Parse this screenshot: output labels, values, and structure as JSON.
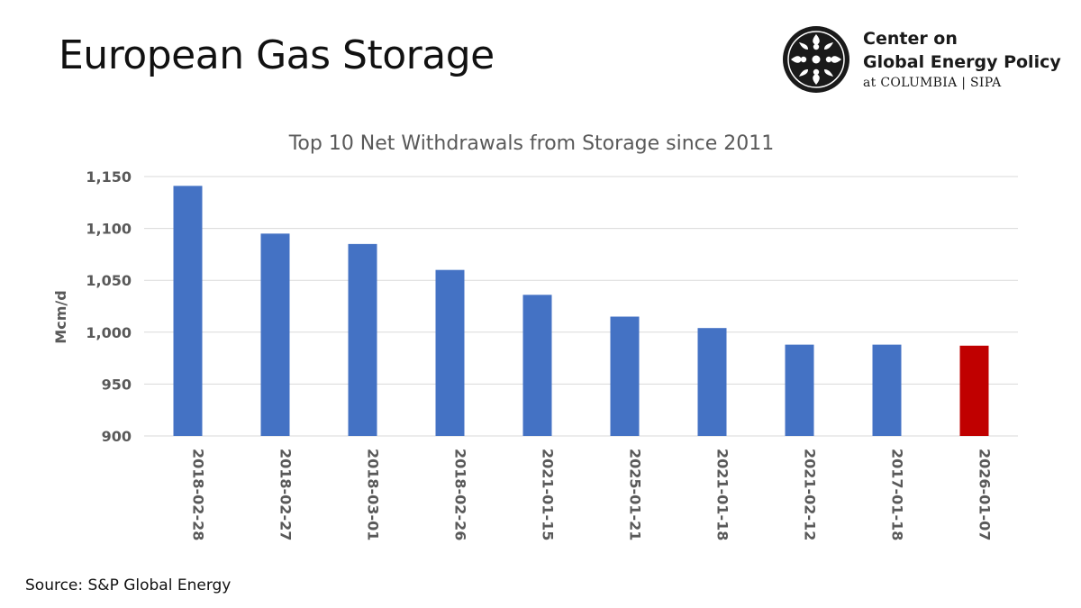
{
  "slide": {
    "title": "European Gas Storage",
    "source": "Source: S&P Global Energy"
  },
  "logo": {
    "line1": "Center on",
    "line2": "Global Energy Policy",
    "line3": "at COLUMBIA | SIPA",
    "icon": "columbia-crown-emblem-icon"
  },
  "colors": {
    "bar_default": "#4472C4",
    "bar_highlight": "#C00000",
    "grid": "#D9D9D9",
    "text": "#595959"
  },
  "chart_data": {
    "type": "bar",
    "title": "Top 10 Net Withdrawals from Storage since 2011",
    "ylabel": "Mcm/d",
    "xlabel": "",
    "ylim": [
      900,
      1150
    ],
    "yticks": [
      900,
      950,
      1000,
      1050,
      1100,
      1150
    ],
    "ytick_labels": [
      "900",
      "950",
      "1,000",
      "1,050",
      "1,100",
      "1,150"
    ],
    "grid": true,
    "legend": "none",
    "categories": [
      "2018-02-28",
      "2018-02-27",
      "2018-03-01",
      "2018-02-26",
      "2021-01-15",
      "2025-01-21",
      "2021-01-18",
      "2021-02-12",
      "2017-01-18",
      "2026-01-07"
    ],
    "values": [
      1141,
      1095,
      1085,
      1060,
      1036,
      1015,
      1004,
      988,
      988,
      987
    ],
    "highlight_index": 9
  }
}
